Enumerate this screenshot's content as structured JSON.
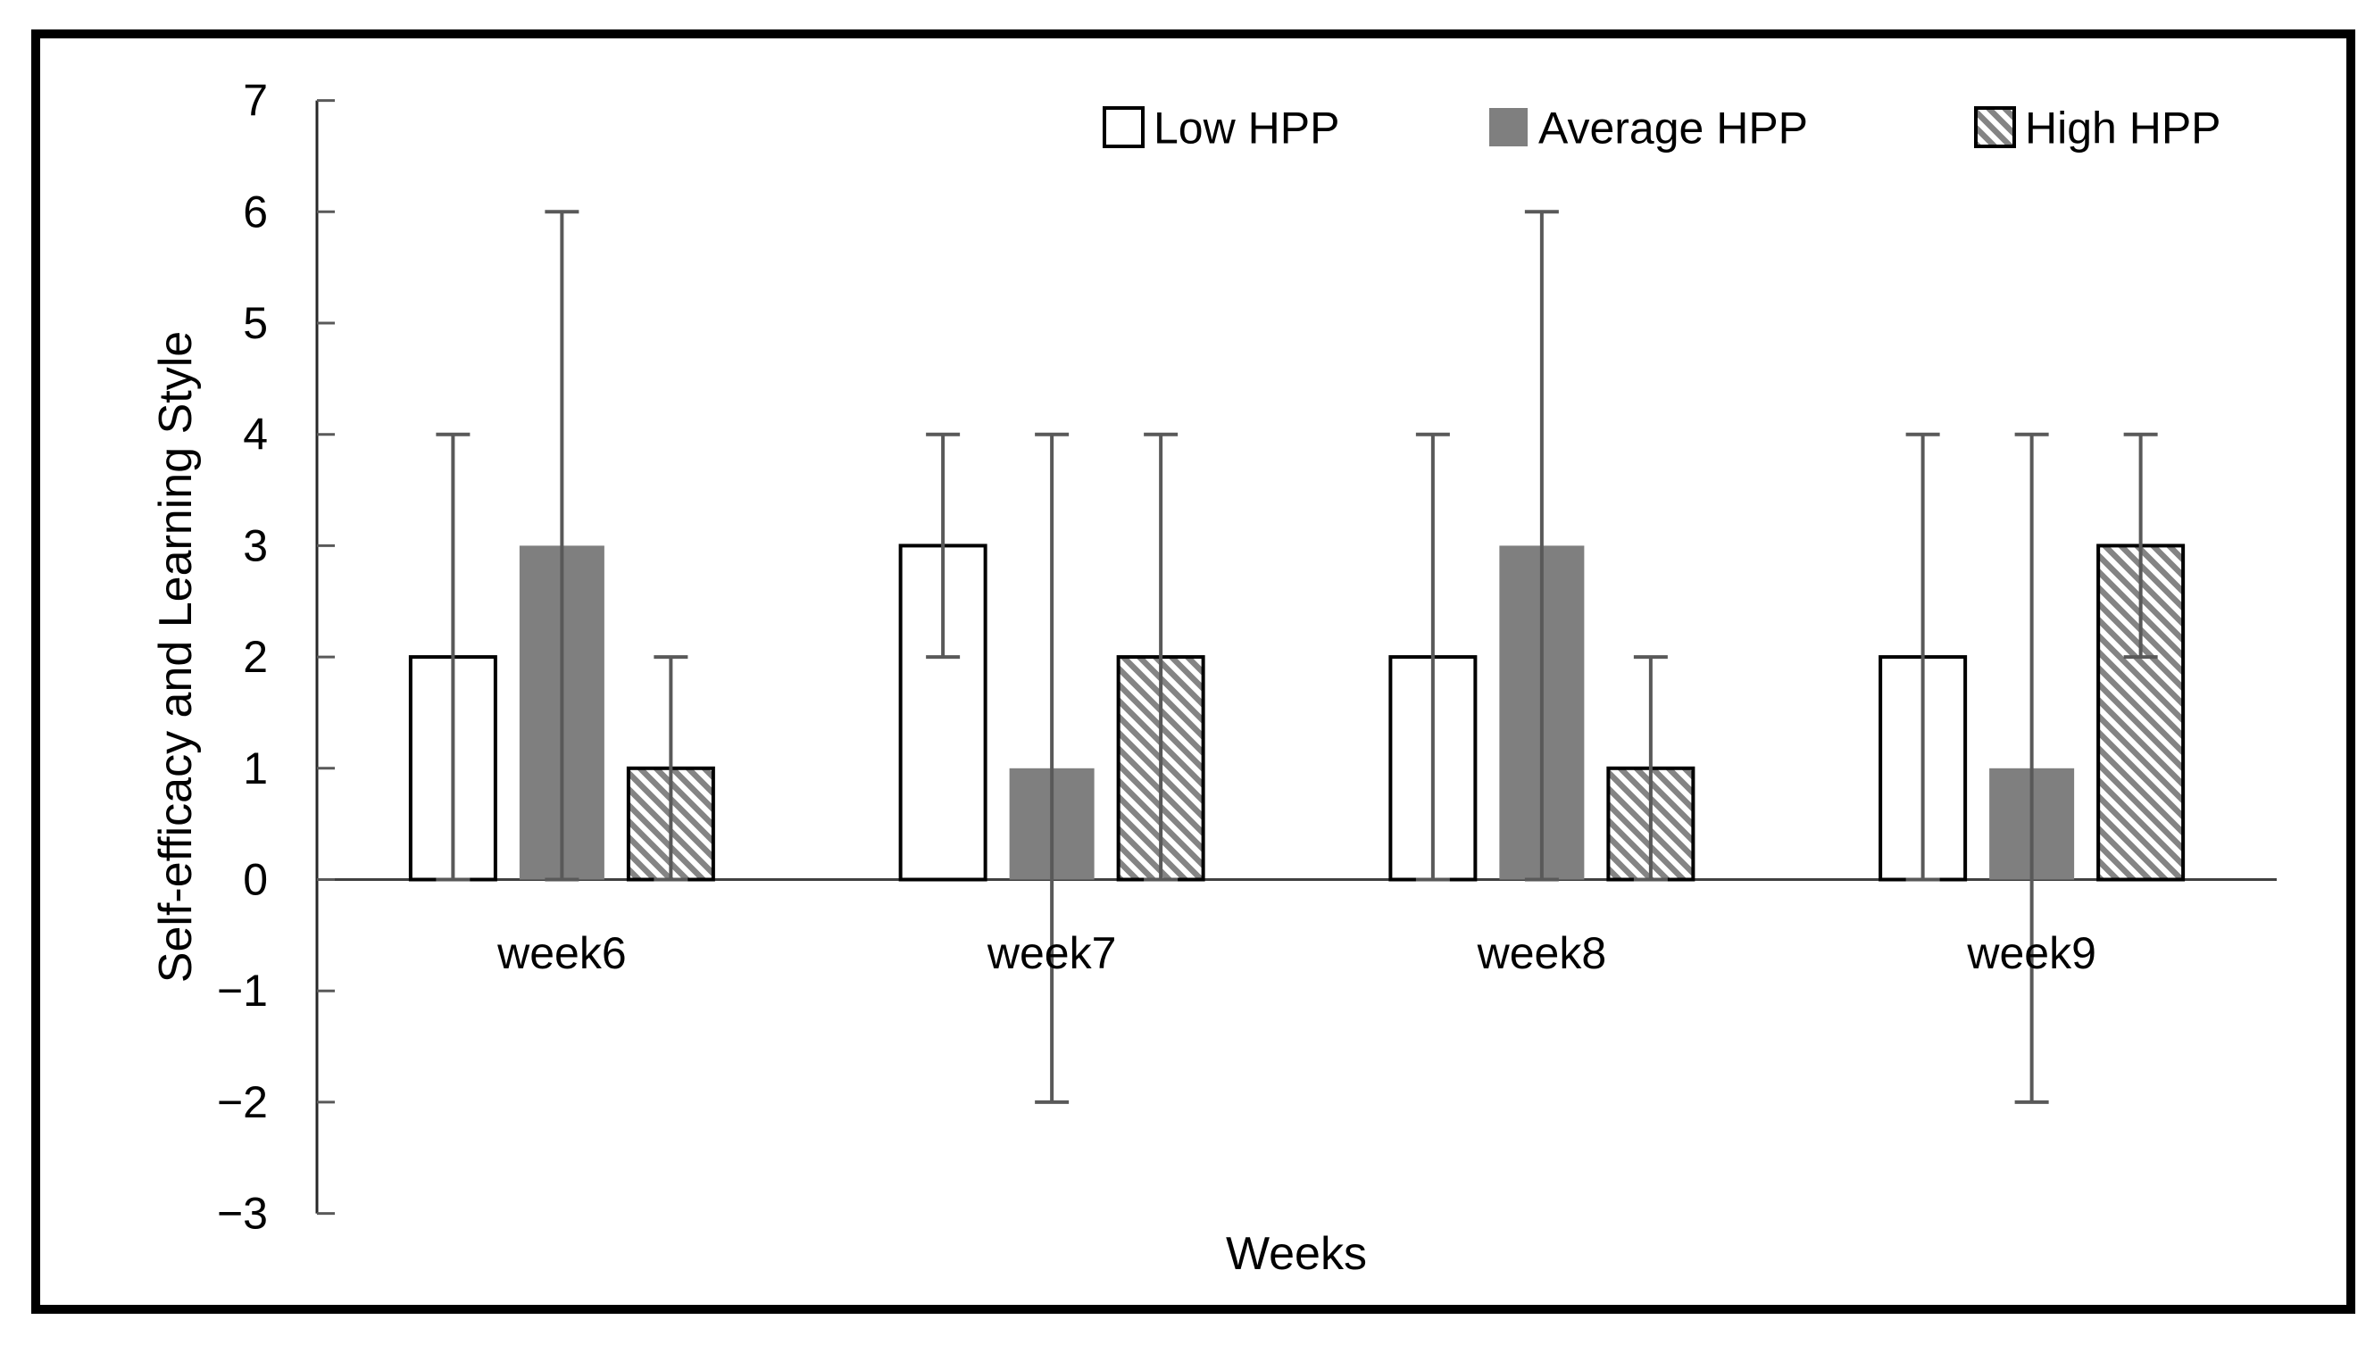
{
  "chart_data": {
    "type": "bar",
    "title": "",
    "categories": [
      "week6",
      "week7",
      "week8",
      "week9"
    ],
    "series": [
      {
        "name": "Low HPP",
        "swatch": "white-square",
        "values": [
          2,
          3,
          2,
          2
        ],
        "error": [
          2,
          1,
          2,
          2
        ]
      },
      {
        "name": "Average HPP",
        "swatch": "gray-square",
        "values": [
          3,
          1,
          3,
          1
        ],
        "error": [
          3,
          3,
          3,
          3
        ]
      },
      {
        "name": "High HPP",
        "swatch": "hatched-square",
        "values": [
          1,
          2,
          1,
          3
        ],
        "error": [
          1,
          2,
          1,
          1
        ]
      }
    ],
    "xlabel": "Weeks",
    "ylabel": "Self-efficacy and Learning Style",
    "ylim": [
      -3,
      7
    ],
    "y_ticks": [
      7,
      6,
      5,
      4,
      3,
      2,
      1,
      0,
      -1,
      -2,
      -3
    ],
    "grid": false,
    "legend_position": "top",
    "error_bars": "symmetric with caps",
    "colors": {
      "bar_fill_gray": "#7f7f7f",
      "hatch_line": "#848484",
      "error_bar": "#595959",
      "axis_line": "#262626",
      "tick": "#595959",
      "zero_line": "#404040",
      "text": "#000000",
      "frame": "#000000",
      "background": "#ffffff"
    }
  }
}
